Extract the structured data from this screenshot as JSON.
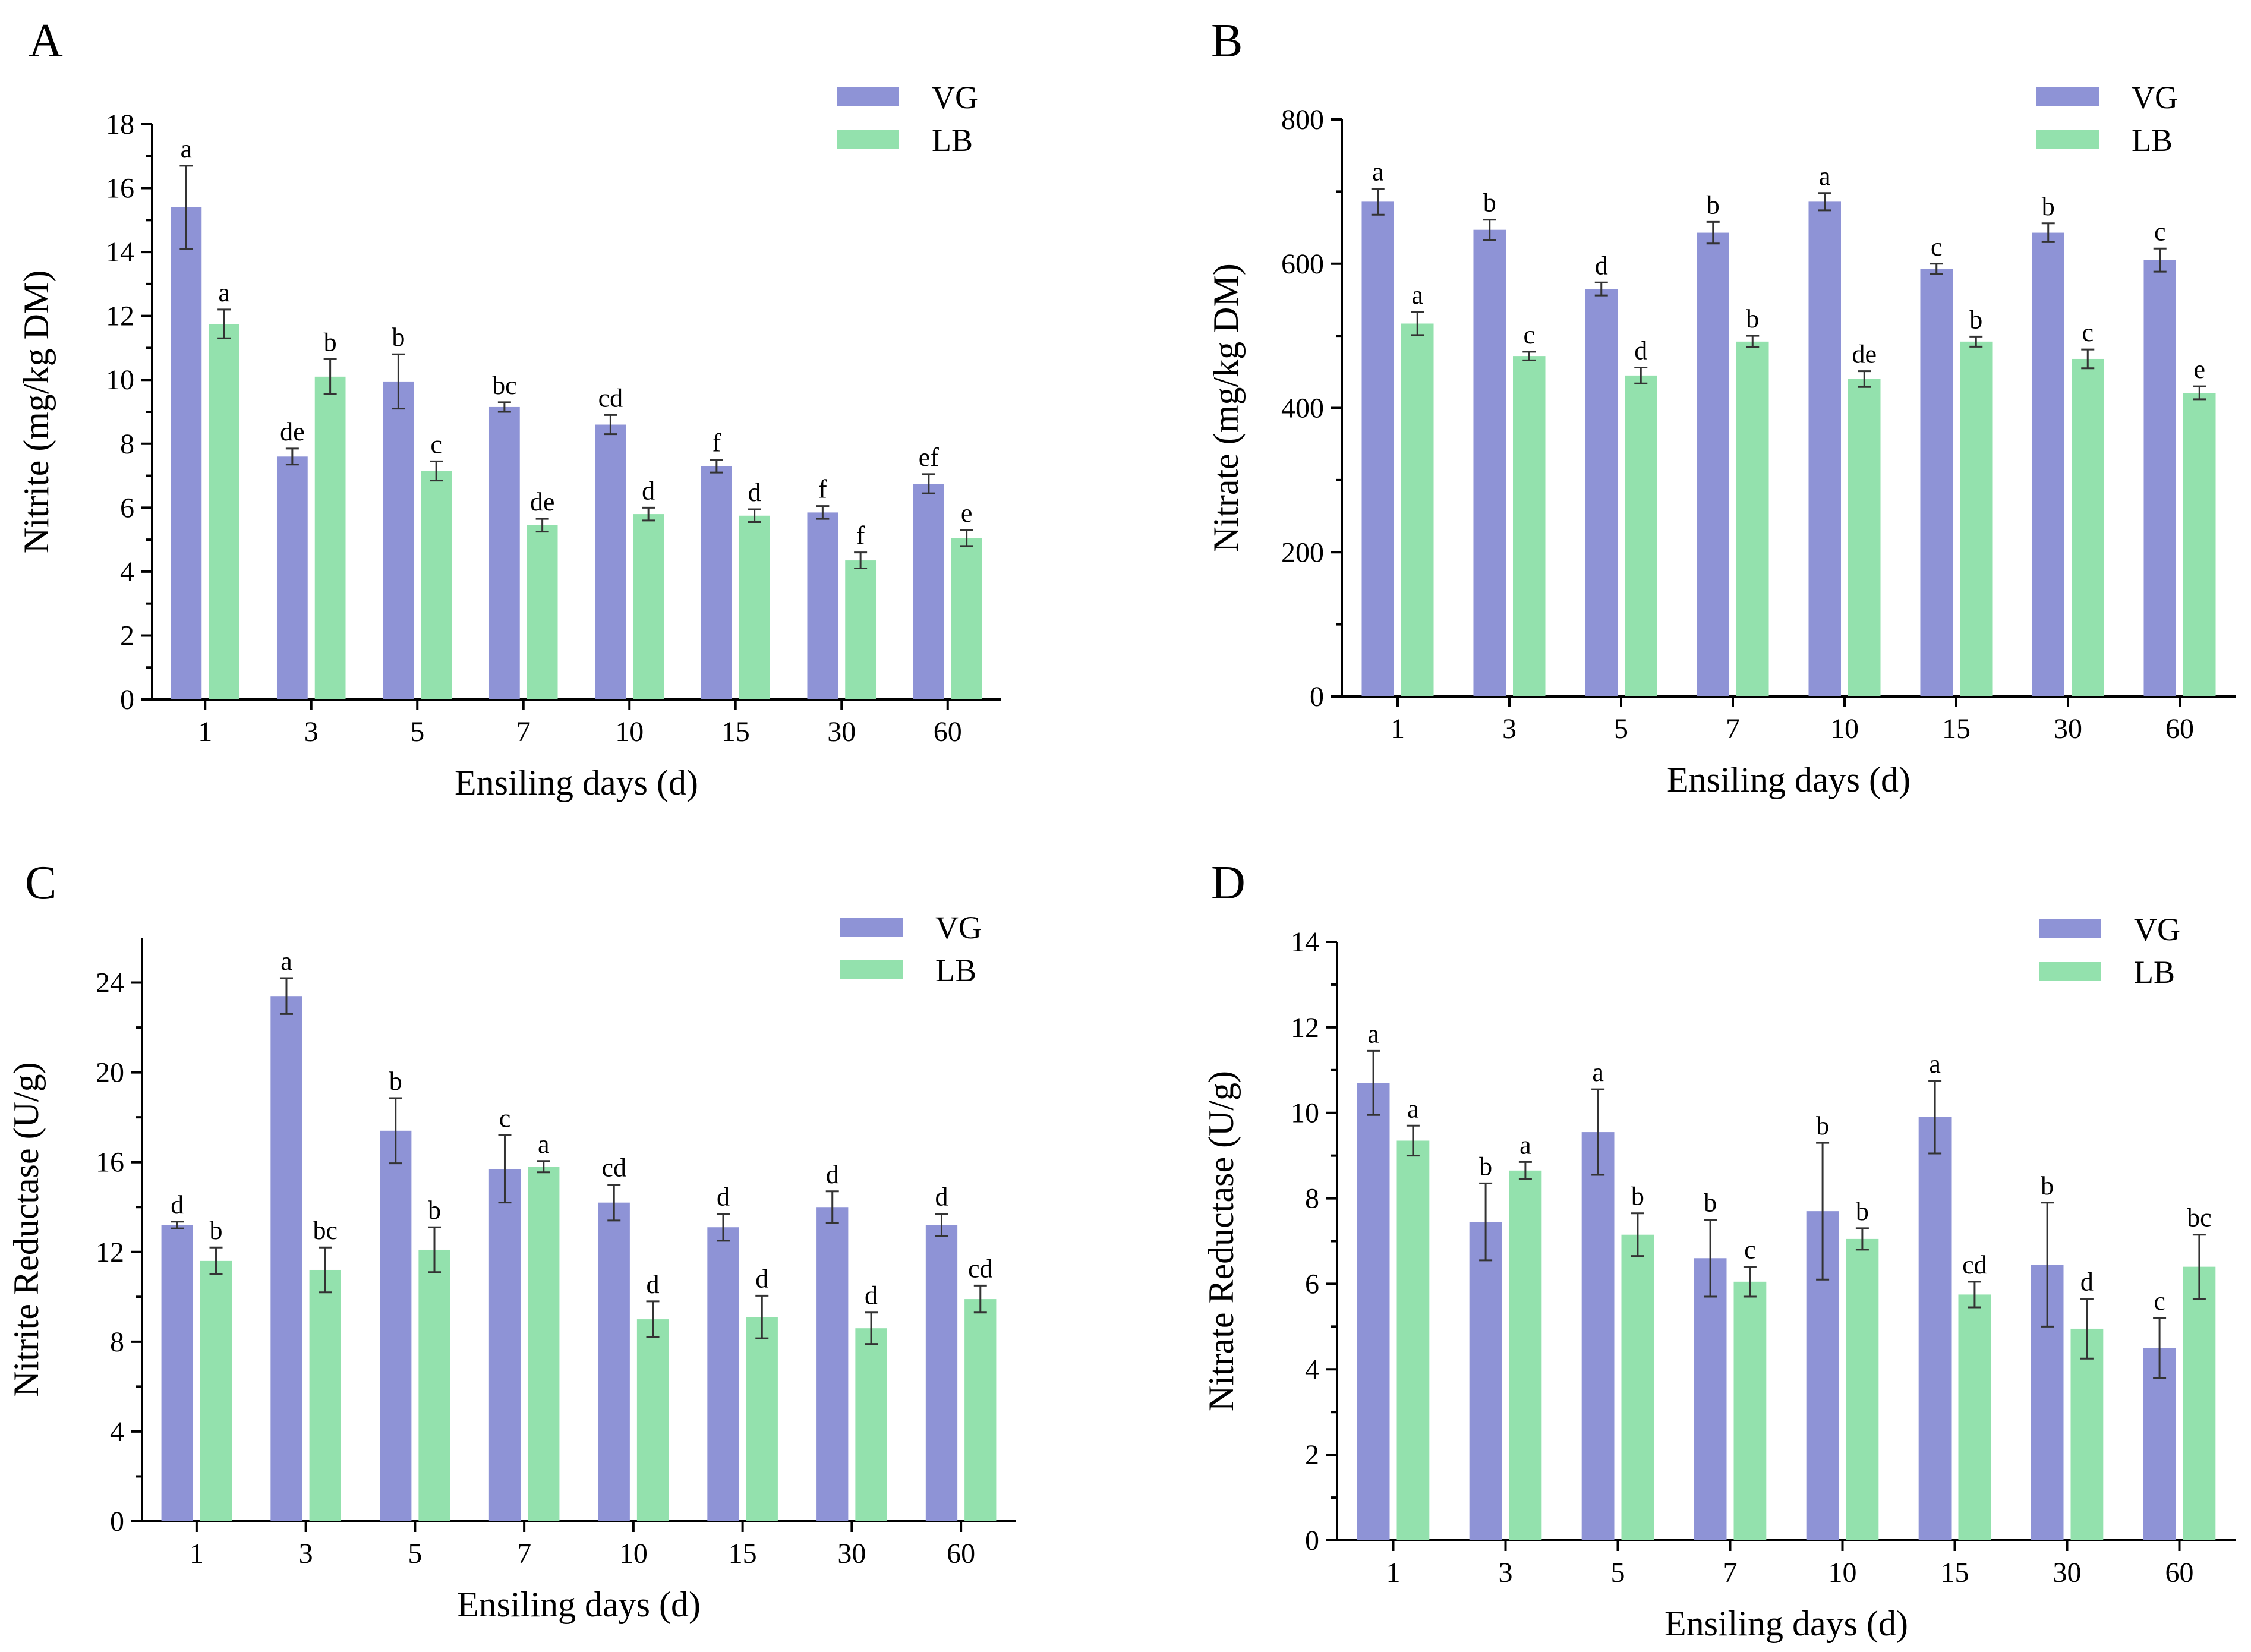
{
  "colors": {
    "VG": "#8e93d6",
    "LB": "#93e1ad"
  },
  "chart_data": [
    {
      "panel": "A",
      "type": "bar",
      "categories": [
        "1",
        "3",
        "5",
        "7",
        "10",
        "15",
        "30",
        "60"
      ],
      "xlabel": "Ensiling days (d)",
      "ylabel": "Nitrite (mg/kg DM)",
      "ylim": [
        0,
        18
      ],
      "yticks": [
        0,
        2,
        4,
        6,
        8,
        10,
        12,
        14,
        16,
        18
      ],
      "legend_position": "top-right",
      "series": [
        {
          "name": "VG",
          "values": [
            15.4,
            7.6,
            9.95,
            9.15,
            8.6,
            7.3,
            5.85,
            6.75
          ],
          "errors": [
            1.3,
            0.25,
            0.85,
            0.15,
            0.3,
            0.2,
            0.2,
            0.3
          ],
          "labels": [
            "a",
            "de",
            "b",
            "bc",
            "cd",
            "f",
            "f",
            "ef"
          ]
        },
        {
          "name": "LB",
          "values": [
            11.75,
            10.1,
            7.15,
            5.45,
            5.8,
            5.75,
            4.35,
            5.05
          ],
          "errors": [
            0.45,
            0.55,
            0.3,
            0.2,
            0.2,
            0.2,
            0.25,
            0.25
          ],
          "labels": [
            "a",
            "b",
            "c",
            "de",
            "d",
            "d",
            "f",
            "e"
          ]
        }
      ]
    },
    {
      "panel": "B",
      "type": "bar",
      "categories": [
        "1",
        "3",
        "5",
        "7",
        "10",
        "15",
        "30",
        "60"
      ],
      "xlabel": "Ensiling days (d)",
      "ylabel": "Nitrate (mg/kg DM)",
      "ylim": [
        0,
        800
      ],
      "yticks": [
        0,
        200,
        400,
        600,
        800
      ],
      "legend_position": "top-right",
      "series": [
        {
          "name": "VG",
          "values": [
            686,
            647,
            565,
            643,
            686,
            593,
            643,
            605
          ],
          "errors": [
            18,
            14,
            9,
            15,
            12,
            7,
            13,
            16
          ],
          "labels": [
            "a",
            "b",
            "d",
            "b",
            "a",
            "c",
            "b",
            "c"
          ]
        },
        {
          "name": "LB",
          "values": [
            517,
            472,
            445,
            492,
            440,
            492,
            468,
            421
          ],
          "errors": [
            16,
            6,
            11,
            8,
            11,
            7,
            13,
            9
          ],
          "labels": [
            "a",
            "c",
            "d",
            "b",
            "de",
            "b",
            "c",
            "e"
          ]
        }
      ]
    },
    {
      "panel": "C",
      "type": "bar",
      "categories": [
        "1",
        "3",
        "5",
        "7",
        "10",
        "15",
        "30",
        "60"
      ],
      "xlabel": "Ensiling days (d)",
      "ylabel": "Nitrite Reductase  (U/g)",
      "ylim": [
        0,
        26
      ],
      "yticks": [
        0,
        4,
        8,
        12,
        16,
        20,
        24
      ],
      "legend_position": "top-right",
      "series": [
        {
          "name": "VG",
          "values": [
            13.2,
            23.4,
            17.4,
            15.7,
            14.2,
            13.1,
            14.0,
            13.2
          ],
          "errors": [
            0.15,
            0.8,
            1.45,
            1.5,
            0.8,
            0.6,
            0.7,
            0.5
          ],
          "labels": [
            "d",
            "a",
            "b",
            "c",
            "cd",
            "d",
            "d",
            "d"
          ]
        },
        {
          "name": "LB",
          "values": [
            11.6,
            11.2,
            12.1,
            15.8,
            9.0,
            9.1,
            8.6,
            9.9
          ],
          "errors": [
            0.6,
            1.0,
            1.0,
            0.25,
            0.8,
            0.95,
            0.7,
            0.6
          ],
          "labels": [
            "b",
            "bc",
            "b",
            "a",
            "d",
            "d",
            "d",
            "cd"
          ]
        }
      ]
    },
    {
      "panel": "D",
      "type": "bar",
      "categories": [
        "1",
        "3",
        "5",
        "7",
        "10",
        "15",
        "30",
        "60"
      ],
      "xlabel": "Ensiling days (d)",
      "ylabel": "Nitrate Reductase  (U/g)",
      "ylim": [
        0,
        14
      ],
      "yticks": [
        0,
        2,
        4,
        6,
        8,
        10,
        12,
        14
      ],
      "legend_position": "top-right",
      "series": [
        {
          "name": "VG",
          "values": [
            10.7,
            7.45,
            9.55,
            6.6,
            7.7,
            9.9,
            6.45,
            4.5
          ],
          "errors": [
            0.75,
            0.9,
            1.0,
            0.9,
            1.6,
            0.85,
            1.45,
            0.7
          ],
          "labels": [
            "a",
            "b",
            "a",
            "b",
            "b",
            "a",
            "b",
            "c"
          ]
        },
        {
          "name": "LB",
          "values": [
            9.35,
            8.65,
            7.15,
            6.05,
            7.05,
            5.75,
            4.95,
            6.4
          ],
          "errors": [
            0.35,
            0.2,
            0.5,
            0.35,
            0.25,
            0.3,
            0.7,
            0.75
          ],
          "labels": [
            "a",
            "a",
            "b",
            "c",
            "b",
            "cd",
            "d",
            "bc"
          ]
        }
      ]
    }
  ]
}
